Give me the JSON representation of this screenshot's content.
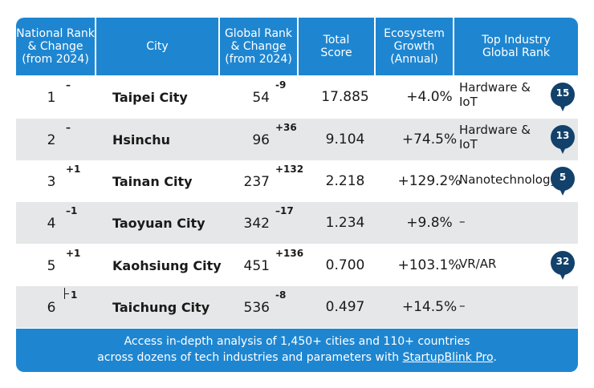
{
  "headers": [
    "National Rank\n& Change\n(from 2024)",
    "City",
    "Global Rank\n& Change\n(from 2024)",
    "Total\nScore",
    "Ecosystem\nGrowth\n(Annual)",
    "Top Industry\nGlobal Rank"
  ],
  "rows": [
    {
      "nrank": "1",
      "nchg": "–",
      "city": "Taipei City",
      "grank": "54",
      "gchg": "-9",
      "score": "17.885",
      "growth": "+4.0%",
      "industry": "Hardware &\nIoT",
      "industry_rank": "15"
    },
    {
      "nrank": "2",
      "nchg": "–",
      "city": "Hsinchu",
      "grank": "96",
      "gchg": "+36",
      "score": "9.104",
      "growth": "+74.5%",
      "industry": "Hardware &\nIoT",
      "industry_rank": "13"
    },
    {
      "nrank": "3",
      "nchg": "+1",
      "city": "Tainan City",
      "grank": "237",
      "gchg": "+132",
      "score": "2.218",
      "growth": "+129.2%",
      "industry": "Nanotechnology",
      "industry_rank": "5"
    },
    {
      "nrank": "4",
      "nchg": "–1",
      "city": "Taoyuan City",
      "grank": "342",
      "gchg": "–17",
      "score": "1.234",
      "growth": "+9.8%",
      "industry": "–",
      "industry_rank": ""
    },
    {
      "nrank": "5",
      "nchg": "+1",
      "city": "Kaohsiung City",
      "grank": "451",
      "gchg": "+136",
      "score": "0.700",
      "growth": "+103.1%",
      "industry": "VR/AR",
      "industry_rank": "32"
    },
    {
      "nrank": "6",
      "nchg": "1",
      "city": "Taichung City",
      "grank": "536",
      "gchg": "-8",
      "score": "0.497",
      "growth": "+14.5%",
      "industry": "–",
      "industry_rank": ""
    }
  ],
  "footer": {
    "line1": "Access in-depth analysis of 1,450+ cities and 110+ countries",
    "line2_prefix": "across dozens of tech industries and parameters with ",
    "link": "StartupBlink Pro",
    "line2_suffix": "."
  },
  "colors": {
    "header": "#1e86d1",
    "stripe": "#e6e7e8",
    "pin": "#12416b"
  }
}
